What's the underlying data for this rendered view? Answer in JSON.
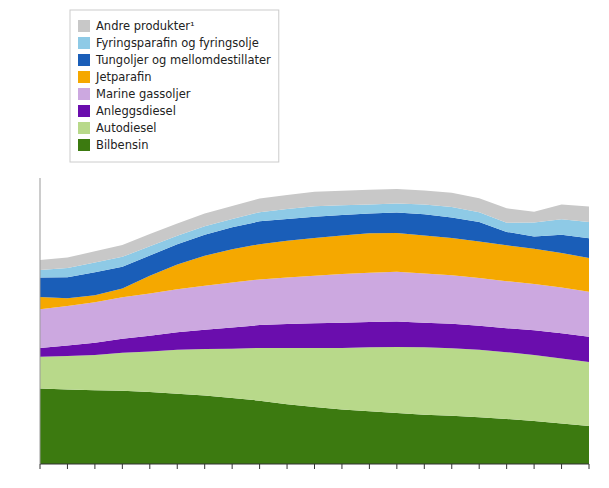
{
  "chart_data": {
    "type": "area",
    "stacked": true,
    "legend": "top-left",
    "tick_labels": false,
    "grid": false,
    "categories": [
      null,
      null,
      null,
      null,
      null,
      null,
      null,
      null,
      null,
      null,
      null,
      null,
      null,
      null,
      null,
      null,
      null,
      null,
      null,
      null,
      null
    ],
    "ylim": [
      0,
      813.28
    ],
    "series": [
      {
        "name": "Bilbensin",
        "color": "#3c7a10",
        "values": [
          215,
          212,
          210,
          208,
          205,
          200,
          195,
          188,
          180,
          170,
          162,
          155,
          150,
          145,
          140,
          137,
          133,
          128,
          122,
          115,
          108
        ]
      },
      {
        "name": "Autodiesel",
        "color": "#b8d98a",
        "values": [
          90,
          95,
          100,
          108,
          115,
          125,
          132,
          140,
          150,
          160,
          168,
          175,
          182,
          188,
          192,
          192,
          192,
          190,
          188,
          185,
          182
        ]
      },
      {
        "name": "Anleggsdiesel",
        "color": "#6a0dad",
        "values": [
          25,
          30,
          35,
          40,
          45,
          50,
          55,
          60,
          65,
          68,
          70,
          72,
          72,
          72,
          70,
          70,
          68,
          68,
          70,
          72,
          72
        ]
      },
      {
        "name": "Marine gassoljer",
        "color": "#cca8e0",
        "values": [
          110,
          112,
          115,
          118,
          120,
          122,
          125,
          128,
          130,
          132,
          135,
          138,
          140,
          142,
          140,
          138,
          136,
          134,
          132,
          130,
          128
        ]
      },
      {
        "name": "Jetparafin",
        "color": "#f5a800",
        "values": [
          35,
          22,
          20,
          25,
          50,
          70,
          85,
          95,
          100,
          105,
          108,
          110,
          112,
          110,
          108,
          106,
          104,
          102,
          100,
          98,
          96
        ]
      },
      {
        "name": "Tungoljer og mellomdestillater",
        "color": "#1a5eb8",
        "values": [
          55,
          60,
          65,
          62,
          58,
          58,
          60,
          62,
          65,
          62,
          60,
          58,
          56,
          58,
          60,
          58,
          55,
          38,
          35,
          52,
          56
        ]
      },
      {
        "name": "Fyringsparafin og fyringsolje",
        "color": "#8ecae6",
        "values": [
          22,
          26,
          28,
          28,
          26,
          24,
          24,
          24,
          26,
          28,
          30,
          28,
          26,
          26,
          28,
          30,
          28,
          26,
          40,
          44,
          46
        ]
      },
      {
        "name": "Andre produkter¹",
        "color": "#c8c8c8",
        "values": [
          28,
          30,
          32,
          34,
          35,
          35,
          36,
          37,
          39,
          40,
          41,
          41,
          42,
          41,
          40,
          40,
          40,
          41,
          30,
          42,
          44
        ]
      }
    ]
  }
}
